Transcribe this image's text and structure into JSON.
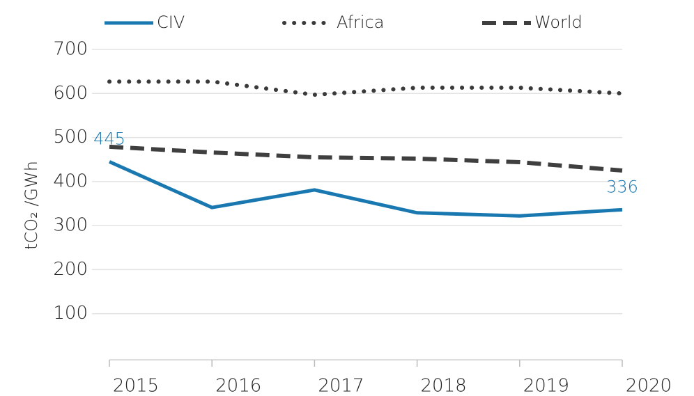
{
  "chart_data": {
    "type": "line",
    "categories": [
      "2015",
      "2016",
      "2017",
      "2018",
      "2019",
      "2020"
    ],
    "series": [
      {
        "name": "CIV",
        "color": "#1a78b0",
        "style": "solid",
        "values": [
          445,
          341,
          381,
          329,
          322,
          336
        ]
      },
      {
        "name": "Africa",
        "color": "#3a3a3a",
        "style": "dotted",
        "values": [
          627,
          627,
          597,
          613,
          613,
          600
        ]
      },
      {
        "name": "World",
        "color": "#3f3f3f",
        "style": "dashed",
        "values": [
          479,
          466,
          455,
          452,
          444,
          425
        ]
      }
    ],
    "y_label": "tCO₂ /GWh",
    "ylim": [
      0,
      700
    ],
    "yticks": [
      100,
      200,
      300,
      400,
      500,
      600,
      700
    ],
    "grid": true,
    "legend": "top"
  }
}
